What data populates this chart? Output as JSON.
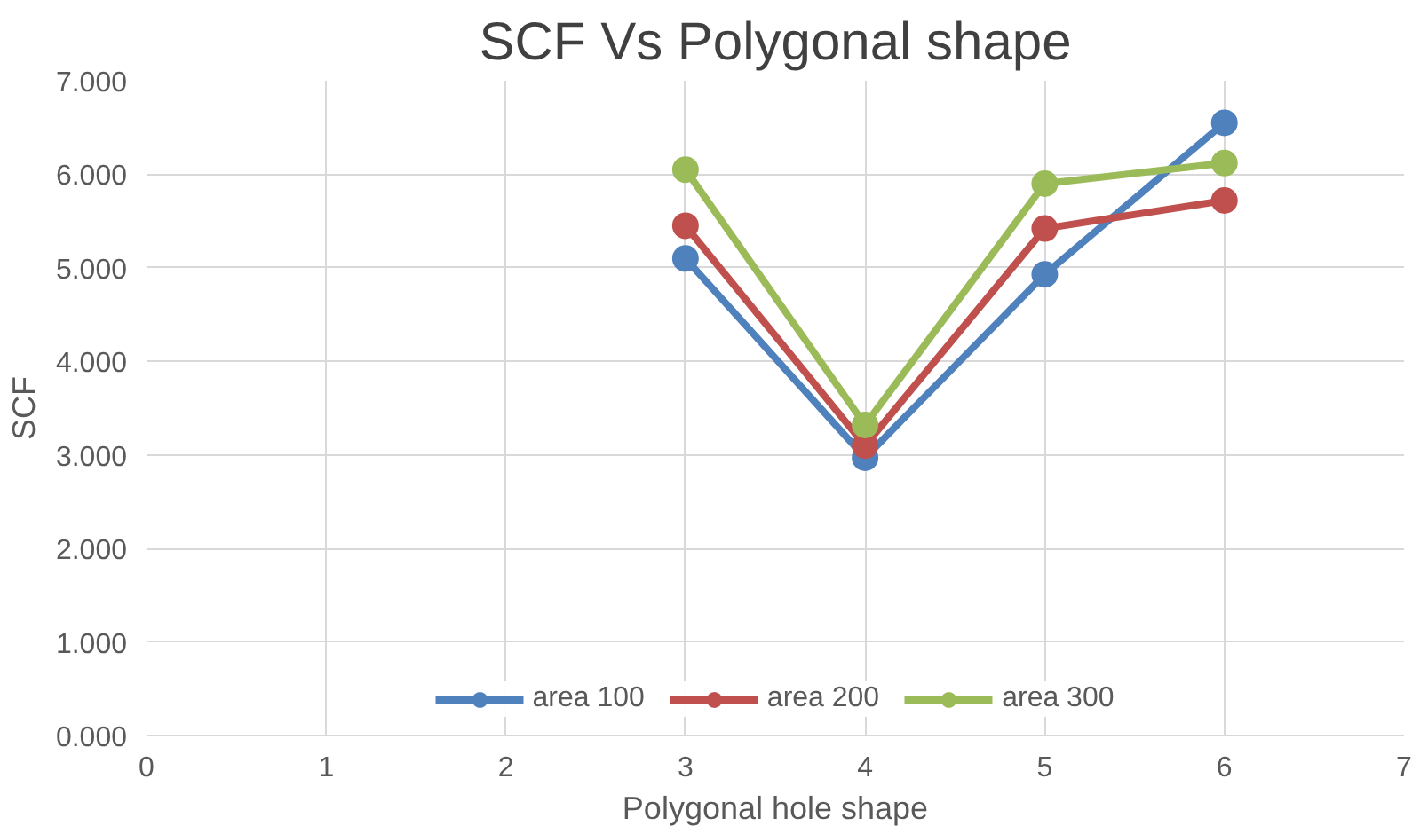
{
  "chart_data": {
    "type": "line",
    "title": "SCF Vs Polygonal shape",
    "xlabel": "Polygonal hole shape",
    "ylabel": "SCF",
    "x": [
      3,
      4,
      5,
      6
    ],
    "series": [
      {
        "name": "area 100",
        "color": "#4f81bd",
        "values": [
          5.1,
          2.97,
          4.93,
          6.55
        ]
      },
      {
        "name": "area 200",
        "color": "#c0504d",
        "values": [
          5.45,
          3.1,
          5.42,
          5.72
        ]
      },
      {
        "name": "area 300",
        "color": "#9bbb59",
        "values": [
          6.05,
          3.32,
          5.9,
          6.12
        ]
      }
    ],
    "xlim": [
      0,
      7
    ],
    "xticks": [
      0,
      1,
      2,
      3,
      4,
      5,
      6,
      7
    ],
    "ylim": [
      0,
      7
    ],
    "yticks": [
      {
        "value": 0,
        "label": "0.000"
      },
      {
        "value": 1,
        "label": "1.000"
      },
      {
        "value": 2,
        "label": "2.000"
      },
      {
        "value": 3,
        "label": "3.000"
      },
      {
        "value": 4,
        "label": "4.000"
      },
      {
        "value": 5,
        "label": "5.000"
      },
      {
        "value": 6,
        "label": "6.000"
      },
      {
        "value": 7,
        "label": "7.000"
      }
    ],
    "grid": true,
    "legend": "bottom",
    "marker": "circle",
    "line_style": "solid"
  }
}
